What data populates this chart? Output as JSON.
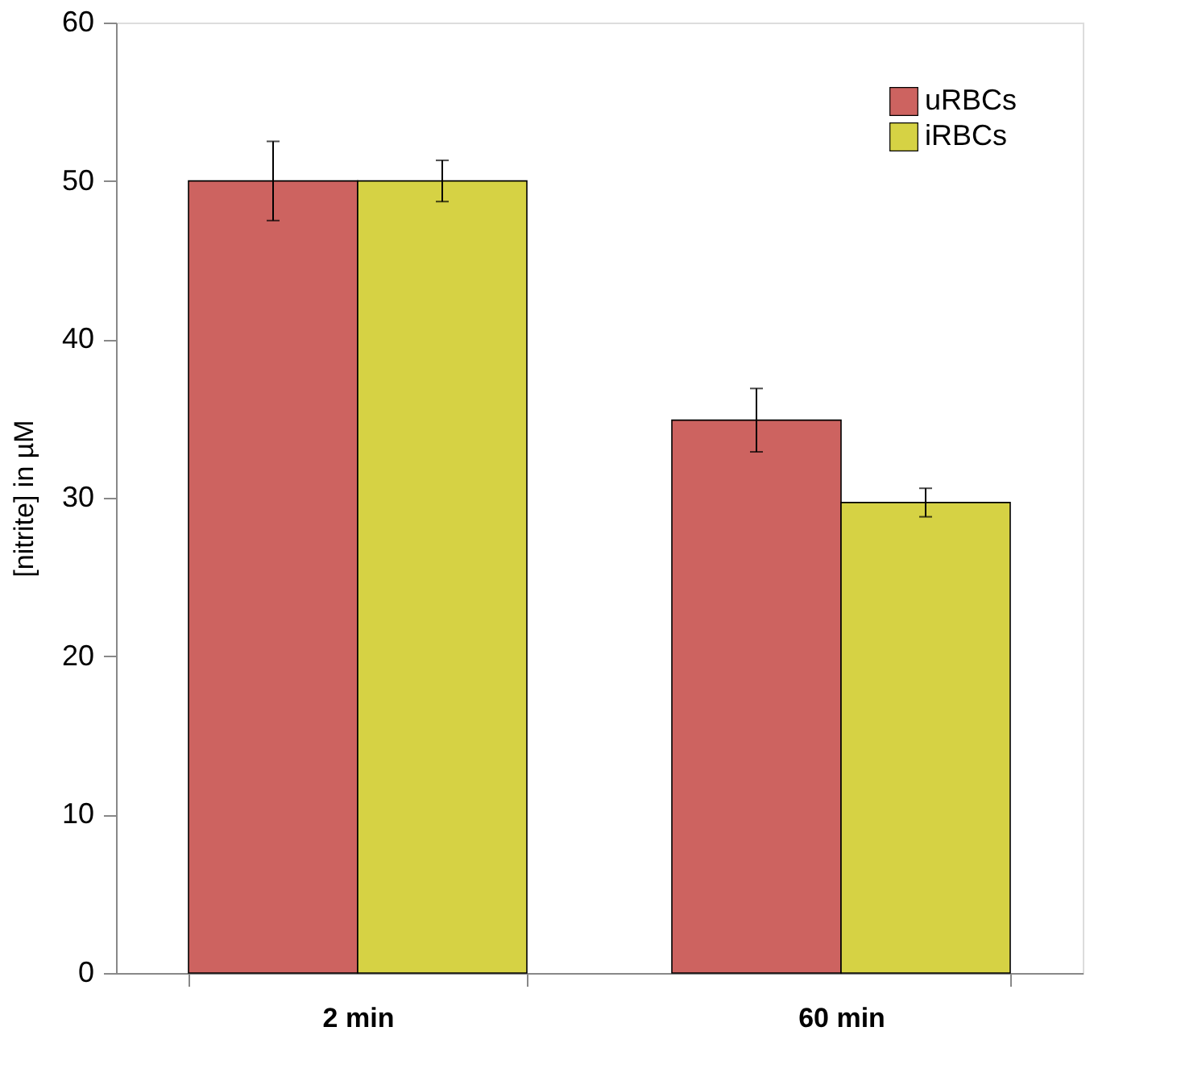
{
  "chart_data": {
    "type": "bar",
    "ylabel": "[nitrite] in µM",
    "categories": [
      "2 min",
      "60 min"
    ],
    "series": [
      {
        "name": "uRBCs",
        "color": "#cd6360",
        "values": [
          50,
          34.9
        ],
        "errors": [
          2.5,
          2
        ]
      },
      {
        "name": "iRBCs",
        "color": "#d6d244",
        "values": [
          50,
          29.7
        ],
        "errors": [
          1.3,
          0.9
        ]
      }
    ],
    "ylim": [
      0,
      60
    ],
    "yticks": [
      0,
      10,
      20,
      30,
      40,
      50,
      60
    ],
    "grid": false,
    "legend": "top right"
  }
}
